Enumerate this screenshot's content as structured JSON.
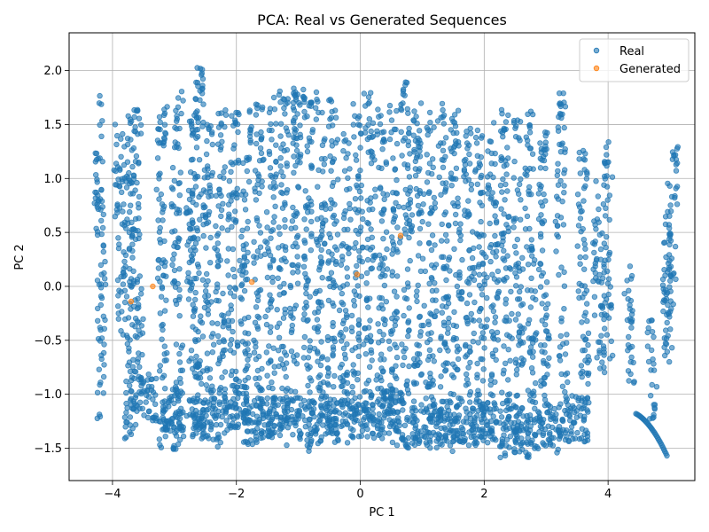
{
  "chart_data": {
    "type": "scatter",
    "title": "PCA: Real vs Generated Sequences",
    "xlabel": "PC 1",
    "ylabel": "PC 2",
    "xlim": [
      -4.7,
      5.4
    ],
    "ylim": [
      -1.8,
      2.35
    ],
    "x_ticks": [
      -4,
      -2,
      0,
      2,
      4
    ],
    "y_ticks": [
      -1.5,
      -1.0,
      -0.5,
      0.0,
      0.5,
      1.0,
      1.5,
      2.0
    ],
    "x_tick_labels": [
      "−4",
      "−2",
      "0",
      "2",
      "4"
    ],
    "y_tick_labels": [
      "−1.5",
      "−1.0",
      "−0.5",
      "0.0",
      "0.5",
      "1.0",
      "1.5",
      "2.0"
    ],
    "grid": true,
    "legend_position": "top-right",
    "series": [
      {
        "name": "Real",
        "color": "#1f77b4",
        "bands": [
          [
            -4.2,
            -1.25,
            1.78
          ],
          [
            -3.88,
            -0.5,
            1.55
          ],
          [
            -3.73,
            -1.45,
            1.6
          ],
          [
            -3.6,
            -1.3,
            1.75
          ],
          [
            -3.2,
            -1.5,
            1.7
          ],
          [
            -2.95,
            -1.55,
            1.82
          ],
          [
            -2.72,
            -1.4,
            1.72
          ],
          [
            -2.62,
            -1.35,
            2.15
          ],
          [
            -2.45,
            -1.3,
            1.5
          ],
          [
            -2.25,
            -1.5,
            1.65
          ],
          [
            -2.05,
            -1.4,
            1.7
          ],
          [
            -1.85,
            -1.5,
            1.7
          ],
          [
            -1.65,
            -1.45,
            1.72
          ],
          [
            -1.45,
            -1.4,
            1.8
          ],
          [
            -1.25,
            -1.5,
            1.85
          ],
          [
            -1.05,
            -1.5,
            1.85
          ],
          [
            -0.85,
            -1.55,
            1.85
          ],
          [
            -0.65,
            -1.5,
            1.8
          ],
          [
            -0.45,
            -1.45,
            1.8
          ],
          [
            -0.25,
            -1.35,
            1.5
          ],
          [
            -0.05,
            -1.4,
            1.7
          ],
          [
            0.15,
            -1.4,
            1.8
          ],
          [
            0.35,
            -1.45,
            1.65
          ],
          [
            0.55,
            -1.5,
            1.7
          ],
          [
            0.75,
            -1.5,
            1.92
          ],
          [
            0.95,
            -1.45,
            1.7
          ],
          [
            1.15,
            -1.5,
            1.62
          ],
          [
            1.35,
            -1.5,
            1.7
          ],
          [
            1.55,
            -1.55,
            1.75
          ],
          [
            1.75,
            -1.5,
            1.5
          ],
          [
            1.95,
            -1.5,
            1.5
          ],
          [
            2.15,
            -1.45,
            1.55
          ],
          [
            2.35,
            -1.6,
            1.65
          ],
          [
            2.55,
            -1.55,
            1.6
          ],
          [
            2.75,
            -1.6,
            1.65
          ],
          [
            2.95,
            -1.5,
            1.5
          ],
          [
            3.25,
            -1.45,
            1.82
          ],
          [
            3.6,
            -1.1,
            1.4
          ],
          [
            3.85,
            -0.85,
            1.0
          ],
          [
            4.0,
            -0.7,
            1.38
          ],
          [
            4.35,
            -1.0,
            0.2
          ],
          [
            4.7,
            -1.25,
            -0.3
          ],
          [
            4.98,
            -0.7,
            1.1
          ],
          [
            5.05,
            -0.3,
            1.38
          ]
        ],
        "bottom_clusters": [
          [
            -3.5,
            -1.0,
            0.45
          ],
          [
            -3.0,
            -1.15,
            0.4
          ],
          [
            -2.5,
            -1.2,
            0.45
          ],
          [
            -2.0,
            -1.1,
            0.4
          ],
          [
            -1.5,
            -1.2,
            0.5
          ],
          [
            -1.0,
            -1.15,
            0.6
          ],
          [
            -0.5,
            -1.2,
            0.5
          ],
          [
            0.0,
            -1.2,
            0.45
          ],
          [
            0.5,
            -1.15,
            0.45
          ],
          [
            1.0,
            -1.25,
            0.55
          ],
          [
            1.5,
            -1.2,
            0.45
          ],
          [
            2.0,
            -1.25,
            0.4
          ],
          [
            2.5,
            -1.3,
            0.5
          ],
          [
            3.0,
            -1.3,
            0.4
          ],
          [
            3.5,
            -1.2,
            0.35
          ]
        ],
        "curve": {
          "from": [
            4.45,
            -1.18
          ],
          "to": [
            4.95,
            -1.57
          ]
        }
      },
      {
        "name": "Generated",
        "color": "#ff7f0e",
        "x": [
          -3.7,
          -3.35,
          -1.75,
          -0.05,
          0.65
        ],
        "y": [
          -0.14,
          0.0,
          0.04,
          0.11,
          0.47
        ]
      }
    ]
  }
}
